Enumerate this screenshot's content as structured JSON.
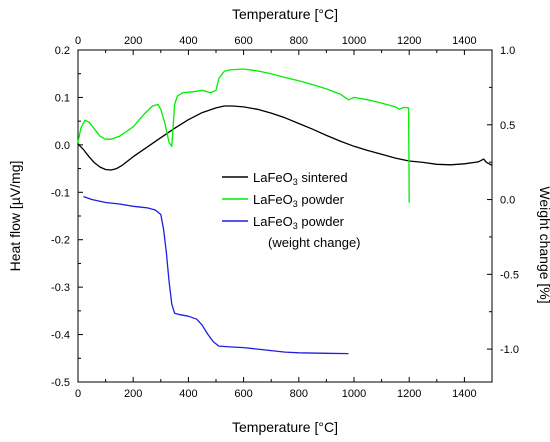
{
  "chart_data": {
    "type": "line",
    "axes": {
      "x_bottom": {
        "label": "Temperature [°C]",
        "range": [
          0,
          1500
        ],
        "ticks": [
          0,
          200,
          400,
          600,
          800,
          1000,
          1200,
          1400
        ]
      },
      "x_top": {
        "label": "Temperature [°C]",
        "range": [
          0,
          1500
        ],
        "ticks": [
          0,
          200,
          400,
          600,
          800,
          1000,
          1200,
          1400
        ]
      },
      "y_left": {
        "label": "Heat flow [µV/mg]",
        "range": [
          -0.5,
          0.2
        ],
        "ticks": [
          "0.2",
          "0.1",
          "0.0",
          "-0.1",
          "-0.2",
          "-0.3",
          "-0.4",
          "-0.5"
        ]
      },
      "y_right": {
        "label": "Weight change [%]",
        "range": [
          -1.22,
          1.0
        ],
        "ticks": [
          "1.0",
          "0.5",
          "0.0",
          "-0.5",
          "-1.0"
        ]
      }
    },
    "legend": {
      "placement": "center",
      "entries": [
        {
          "formula": "LaFeO",
          "sub": "3",
          "desc": "sintered",
          "color": "#000000"
        },
        {
          "formula": "LaFeO",
          "sub": "3",
          "desc": "powder",
          "color": "#00ee00"
        },
        {
          "formula": "LaFeO",
          "sub": "3",
          "desc": "powder",
          "desc2": "(weight change)",
          "color": "#1f1fdd"
        }
      ]
    },
    "series": [
      {
        "axis": "left",
        "color": "#000000",
        "points": [
          [
            0,
            0.002
          ],
          [
            20,
            -0.01
          ],
          [
            40,
            -0.025
          ],
          [
            60,
            -0.038
          ],
          [
            80,
            -0.047
          ],
          [
            100,
            -0.052
          ],
          [
            120,
            -0.053
          ],
          [
            140,
            -0.05
          ],
          [
            160,
            -0.043
          ],
          [
            200,
            -0.025
          ],
          [
            250,
            -0.005
          ],
          [
            300,
            0.015
          ],
          [
            350,
            0.035
          ],
          [
            400,
            0.053
          ],
          [
            450,
            0.068
          ],
          [
            500,
            0.078
          ],
          [
            530,
            0.082
          ],
          [
            560,
            0.082
          ],
          [
            600,
            0.08
          ],
          [
            650,
            0.075
          ],
          [
            700,
            0.067
          ],
          [
            750,
            0.057
          ],
          [
            800,
            0.045
          ],
          [
            850,
            0.033
          ],
          [
            900,
            0.02
          ],
          [
            950,
            0.008
          ],
          [
            1000,
            -0.003
          ],
          [
            1050,
            -0.012
          ],
          [
            1100,
            -0.02
          ],
          [
            1150,
            -0.028
          ],
          [
            1200,
            -0.034
          ],
          [
            1250,
            -0.037
          ],
          [
            1300,
            -0.041
          ],
          [
            1350,
            -0.042
          ],
          [
            1400,
            -0.04
          ],
          [
            1450,
            -0.036
          ],
          [
            1470,
            -0.03
          ],
          [
            1480,
            -0.037
          ],
          [
            1500,
            -0.043
          ]
        ]
      },
      {
        "axis": "left",
        "color": "#00ee00",
        "points": [
          [
            0,
            0.005
          ],
          [
            10,
            0.035
          ],
          [
            25,
            0.052
          ],
          [
            40,
            0.048
          ],
          [
            60,
            0.033
          ],
          [
            80,
            0.018
          ],
          [
            100,
            0.012
          ],
          [
            120,
            0.012
          ],
          [
            150,
            0.018
          ],
          [
            200,
            0.038
          ],
          [
            240,
            0.065
          ],
          [
            270,
            0.082
          ],
          [
            290,
            0.085
          ],
          [
            300,
            0.075
          ],
          [
            315,
            0.045
          ],
          [
            330,
            0.005
          ],
          [
            340,
            -0.003
          ],
          [
            350,
            0.085
          ],
          [
            360,
            0.103
          ],
          [
            380,
            0.11
          ],
          [
            420,
            0.112
          ],
          [
            450,
            0.115
          ],
          [
            480,
            0.11
          ],
          [
            500,
            0.115
          ],
          [
            510,
            0.14
          ],
          [
            530,
            0.155
          ],
          [
            550,
            0.158
          ],
          [
            600,
            0.16
          ],
          [
            650,
            0.156
          ],
          [
            700,
            0.15
          ],
          [
            750,
            0.142
          ],
          [
            800,
            0.135
          ],
          [
            850,
            0.127
          ],
          [
            900,
            0.118
          ],
          [
            950,
            0.107
          ],
          [
            980,
            0.095
          ],
          [
            1000,
            0.1
          ],
          [
            1050,
            0.095
          ],
          [
            1100,
            0.088
          ],
          [
            1150,
            0.08
          ],
          [
            1165,
            0.075
          ],
          [
            1180,
            0.079
          ],
          [
            1198,
            0.078
          ],
          [
            1200,
            -0.122
          ]
        ]
      },
      {
        "axis": "right",
        "color": "#1f1fdd",
        "points": [
          [
            20,
            0.02
          ],
          [
            50,
            0.0
          ],
          [
            100,
            -0.02
          ],
          [
            150,
            -0.03
          ],
          [
            200,
            -0.045
          ],
          [
            250,
            -0.055
          ],
          [
            280,
            -0.07
          ],
          [
            300,
            -0.1
          ],
          [
            310,
            -0.2
          ],
          [
            320,
            -0.35
          ],
          [
            330,
            -0.55
          ],
          [
            340,
            -0.7
          ],
          [
            350,
            -0.76
          ],
          [
            370,
            -0.77
          ],
          [
            400,
            -0.78
          ],
          [
            430,
            -0.8
          ],
          [
            450,
            -0.84
          ],
          [
            470,
            -0.9
          ],
          [
            490,
            -0.95
          ],
          [
            510,
            -0.98
          ],
          [
            550,
            -0.985
          ],
          [
            600,
            -0.99
          ],
          [
            650,
            -1.0
          ],
          [
            700,
            -1.01
          ],
          [
            750,
            -1.02
          ],
          [
            800,
            -1.025
          ],
          [
            900,
            -1.028
          ],
          [
            980,
            -1.03
          ]
        ]
      }
    ]
  }
}
